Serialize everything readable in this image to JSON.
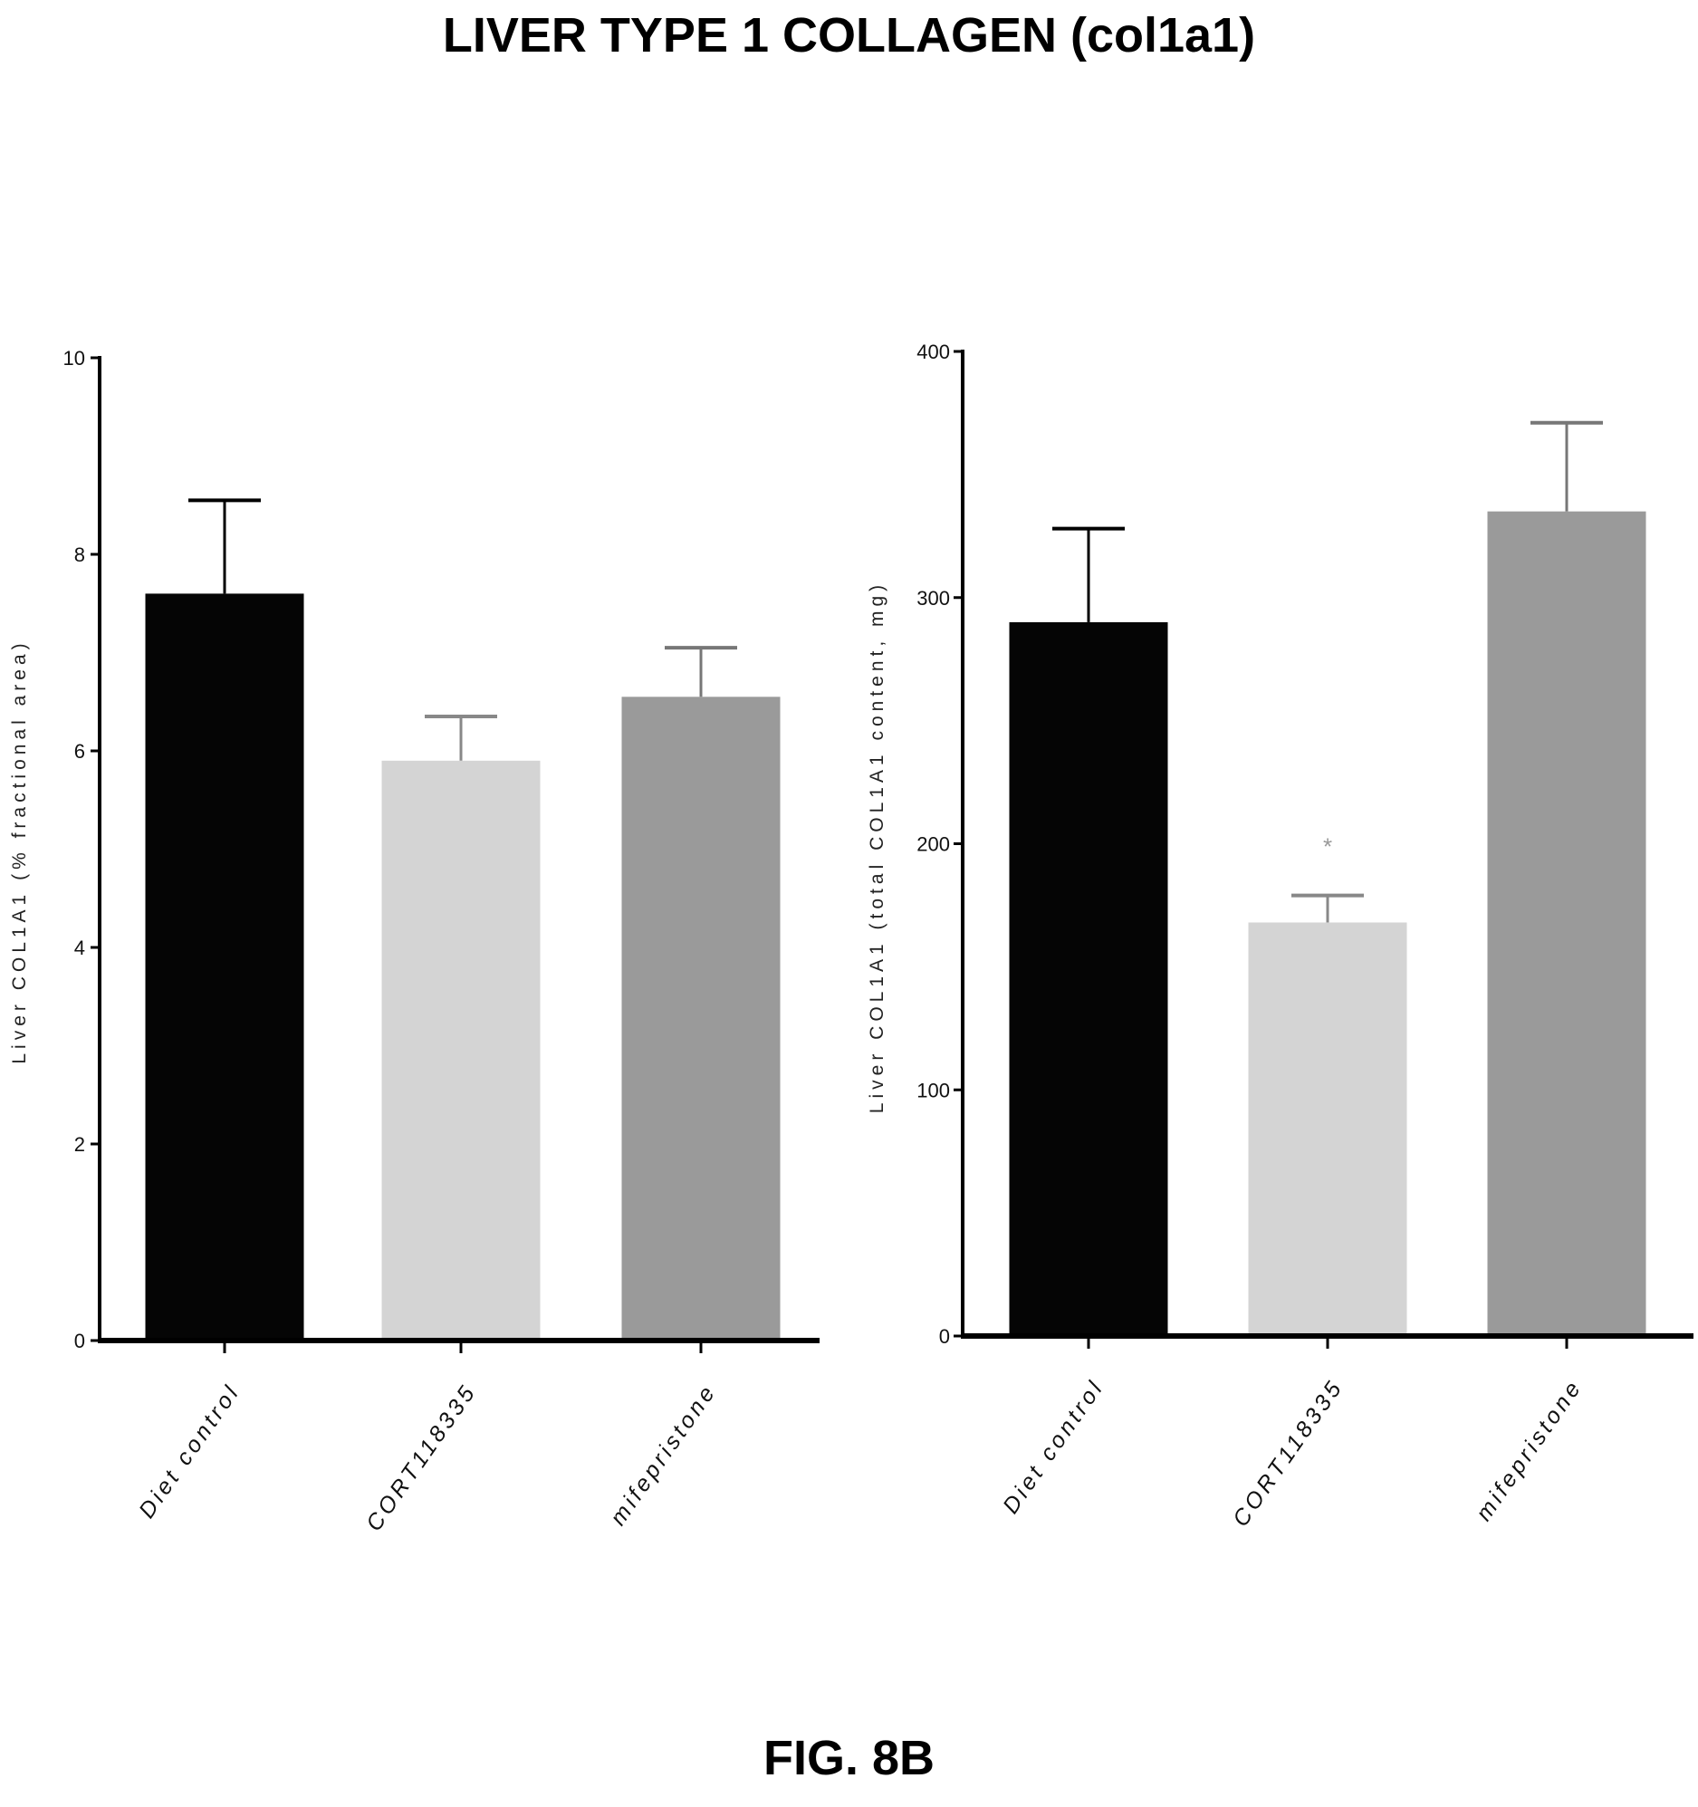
{
  "title": "LIVER TYPE 1 COLLAGEN (col1a1)",
  "figure_label": "FIG. 8B",
  "colors": {
    "bar_fills": [
      "#050505",
      "#d4d4d4",
      "#9a9a9a"
    ],
    "axis": "#000000"
  },
  "chart_data": [
    {
      "type": "bar",
      "categories": [
        "Diet control",
        "CORT118335",
        "mifepristone"
      ],
      "values": [
        7.6,
        5.9,
        6.55
      ],
      "errors": [
        0.95,
        0.45,
        0.5
      ],
      "ylabel": "Liver COL1A1 (% fractional area)",
      "ylim": [
        0,
        10
      ],
      "yticks": [
        0,
        2,
        4,
        6,
        8,
        10
      ],
      "ytick_labels": [
        "0",
        "2",
        "4",
        "6",
        "8",
        "10"
      ],
      "annotations": [],
      "grid": false
    },
    {
      "type": "bar",
      "categories": [
        "Diet control",
        "CORT118335",
        "mifepristone"
      ],
      "values": [
        290,
        168,
        335
      ],
      "errors": [
        38,
        11,
        36
      ],
      "ylabel": "Liver COL1A1 (total COL1A1 content, mg)",
      "ylim": [
        0,
        400
      ],
      "yticks": [
        0,
        100,
        200,
        300,
        400
      ],
      "ytick_labels": [
        "0",
        "100",
        "200",
        "300",
        "400"
      ],
      "annotations": [
        {
          "category_index": 1,
          "text": "*"
        }
      ],
      "grid": false
    }
  ]
}
